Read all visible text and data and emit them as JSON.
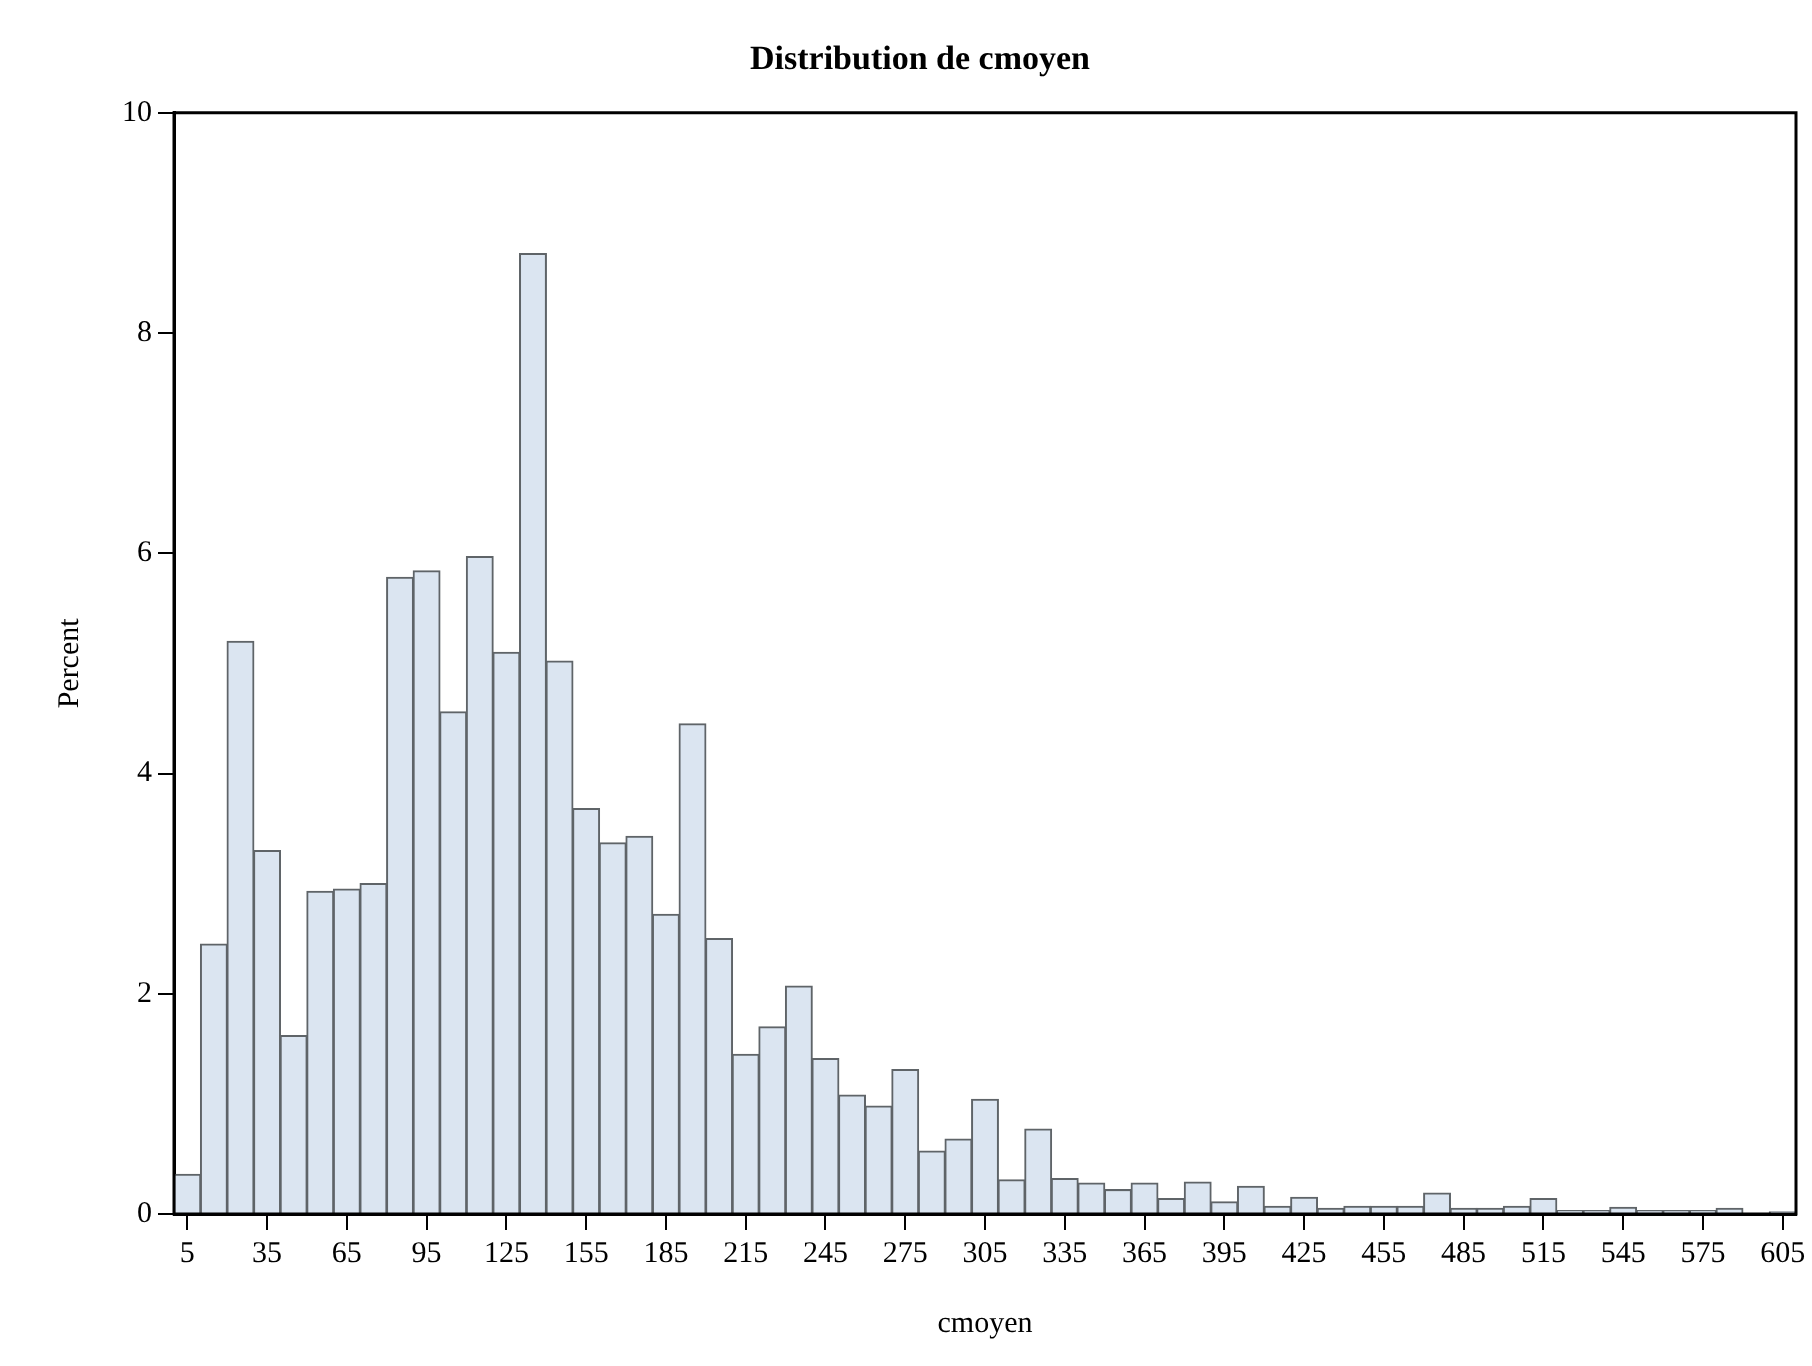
{
  "chart_data": {
    "type": "histogram",
    "title": "Distribution de cmoyen",
    "xlabel": "cmoyen",
    "ylabel": "Percent",
    "bins": [
      0,
      10,
      20,
      30,
      40,
      50,
      60,
      70,
      80,
      90,
      100,
      110,
      120,
      130,
      140,
      150,
      160,
      170,
      180,
      190,
      200,
      210,
      220,
      230,
      240,
      250,
      260,
      270,
      280,
      290,
      300,
      310,
      320,
      330,
      340,
      350,
      360,
      370,
      380,
      390,
      400,
      410,
      420,
      430,
      440,
      450,
      460,
      470,
      480,
      490,
      500,
      510,
      520,
      530,
      540,
      550,
      560,
      570,
      580,
      590,
      600,
      610
    ],
    "values": [
      0.36,
      2.45,
      5.2,
      3.3,
      1.62,
      2.93,
      2.95,
      3.0,
      5.78,
      5.84,
      4.56,
      5.97,
      5.1,
      8.72,
      5.02,
      3.68,
      3.37,
      3.43,
      2.72,
      4.45,
      2.5,
      1.45,
      1.7,
      2.07,
      1.41,
      1.08,
      0.98,
      1.31,
      0.57,
      0.68,
      1.04,
      0.31,
      0.77,
      0.32,
      0.28,
      0.22,
      0.28,
      0.14,
      0.29,
      0.11,
      0.25,
      0.07,
      0.15,
      0.05,
      0.07,
      0.07,
      0.07,
      0.19,
      0.05,
      0.05,
      0.07,
      0.14,
      0.03,
      0.03,
      0.06,
      0.03,
      0.03,
      0.03,
      0.05,
      0.0,
      0.02
    ],
    "color": "#dbe5f1",
    "xlim": [
      0,
      610
    ],
    "xticks": [
      5,
      35,
      65,
      95,
      125,
      155,
      185,
      215,
      245,
      275,
      305,
      335,
      365,
      395,
      425,
      455,
      485,
      515,
      545,
      575,
      605
    ],
    "ylim": [
      0,
      10
    ],
    "yticks": [
      0,
      2,
      4,
      6,
      8,
      10
    ],
    "grid": false,
    "legend": false
  }
}
